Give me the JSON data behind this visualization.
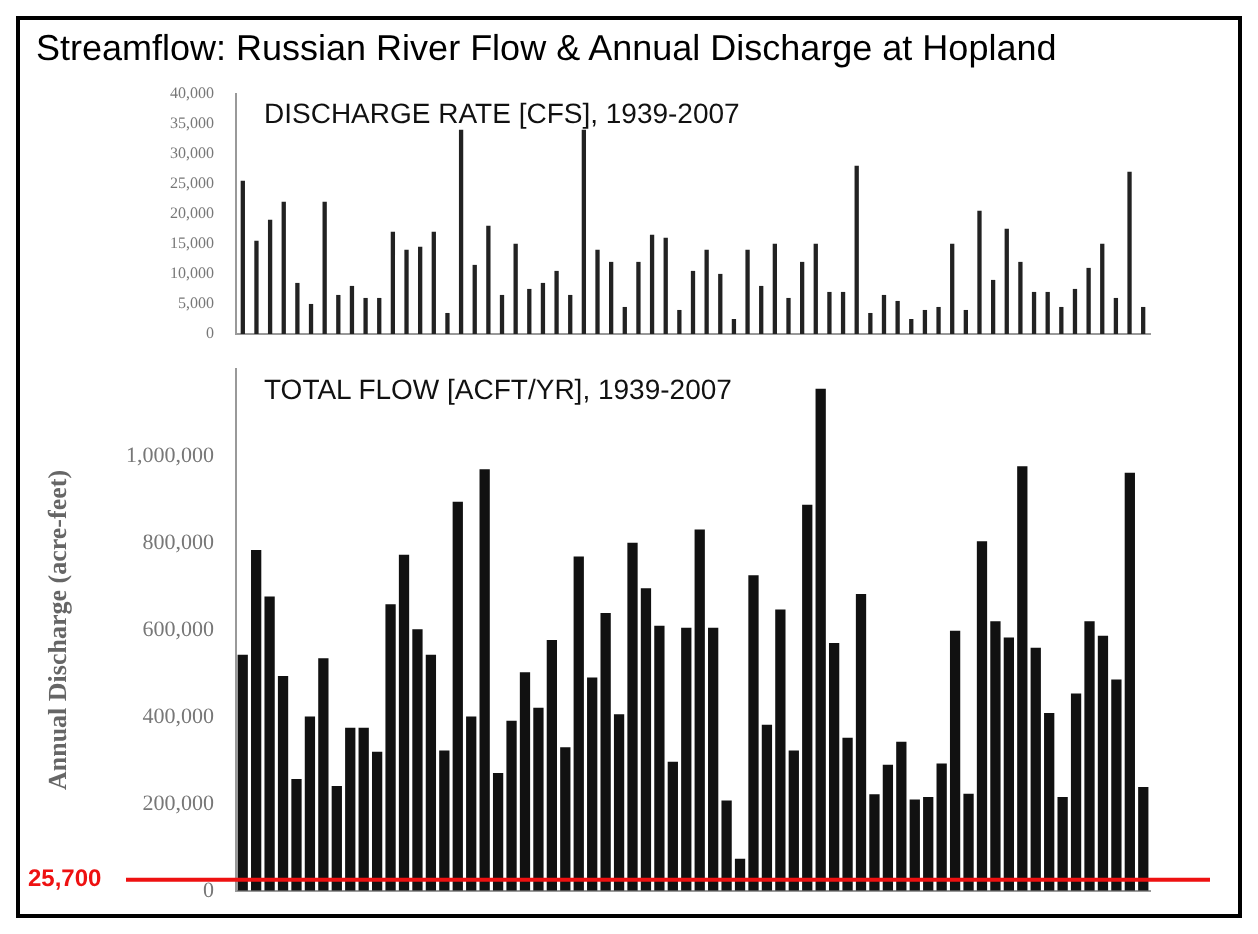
{
  "chart_data": [
    {
      "type": "bar",
      "title": "Streamflow: Russian River Flow & Annual Discharge at Hopland",
      "subtitle": "DISCHARGE RATE [CFS], 1939-2007",
      "color": "#222222",
      "tick_labels": "y",
      "categories": [
        null,
        null,
        null,
        null,
        null,
        null,
        null,
        null,
        null,
        null,
        null,
        null,
        null,
        null,
        null,
        null,
        null,
        null,
        null,
        null,
        null,
        null,
        null,
        null,
        null,
        null,
        null,
        null,
        null,
        null,
        null,
        null,
        null,
        null,
        null,
        null,
        null,
        null,
        null,
        null,
        null,
        null,
        null,
        null,
        null,
        null,
        null,
        null,
        null,
        null,
        null,
        null,
        null,
        null,
        null,
        null,
        null,
        null,
        null,
        null,
        null,
        null,
        null,
        null,
        null,
        null,
        null
      ],
      "values": [
        25500,
        15500,
        19000,
        22000,
        8500,
        5000,
        22000,
        6500,
        8000,
        6000,
        6000,
        17000,
        14000,
        14500,
        17000,
        3500,
        34000,
        11500,
        18000,
        6500,
        15000,
        7500,
        8500,
        10500,
        6500,
        34000,
        14000,
        12000,
        4500,
        12000,
        16500,
        16000,
        4000,
        10500,
        14000,
        10000,
        2500,
        14000,
        8000,
        15000,
        6000,
        12000,
        15000,
        7000,
        7000,
        28000,
        3500,
        6500,
        5500,
        2500,
        4000,
        4500,
        15000,
        4000,
        20500,
        9000,
        17500,
        12000,
        7000,
        7000,
        4500,
        7500,
        11000,
        15000,
        6000,
        27000,
        4500
      ],
      "ylim": [
        0,
        40000
      ],
      "yticks": [
        {
          "value": 0,
          "label": "0"
        },
        {
          "value": 5000,
          "label": "5,000"
        },
        {
          "value": 10000,
          "label": "10,000"
        },
        {
          "value": 15000,
          "label": "15,000"
        },
        {
          "value": 20000,
          "label": "20,000"
        },
        {
          "value": 25000,
          "label": "25,000"
        },
        {
          "value": 30000,
          "label": "30,000"
        },
        {
          "value": 35000,
          "label": "35,000"
        },
        {
          "value": 40000,
          "label": "40,000"
        }
      ]
    },
    {
      "type": "bar",
      "subtitle": "TOTAL FLOW [ACFT/YR], 1939-2007",
      "ylabel": "Annual Discharge (acre-feet)",
      "color": "#111111",
      "tick_labels": "y",
      "categories": [
        null,
        null,
        null,
        null,
        null,
        null,
        null,
        null,
        null,
        null,
        null,
        null,
        null,
        null,
        null,
        null,
        null,
        null,
        null,
        null,
        null,
        null,
        null,
        null,
        null,
        null,
        null,
        null,
        null,
        null,
        null,
        null,
        null,
        null,
        null,
        null,
        null,
        null,
        null,
        null,
        null,
        null,
        null,
        null,
        null,
        null,
        null,
        null,
        null,
        null,
        null,
        null,
        null,
        null,
        null,
        null,
        null,
        null,
        null,
        null,
        null,
        null,
        null,
        null,
        null,
        null,
        null,
        null
      ],
      "values": [
        543000,
        784000,
        677000,
        494000,
        257000,
        401000,
        535000,
        241000,
        375000,
        375000,
        320000,
        659000,
        773000,
        602000,
        543000,
        323000,
        895000,
        401000,
        970000,
        271000,
        391000,
        503000,
        421000,
        577000,
        330000,
        769000,
        491000,
        639000,
        406000,
        801000,
        696000,
        610000,
        297000,
        605000,
        831000,
        605000,
        208000,
        74000,
        726000,
        382000,
        647000,
        323000,
        888000,
        1155000,
        570000,
        352000,
        683000,
        222000,
        290000,
        343000,
        210000,
        216000,
        293000,
        598000,
        223000,
        804000,
        620000,
        583000,
        977000,
        559000,
        409000,
        216000,
        454000,
        620000,
        587000,
        486000,
        962000,
        239000
      ],
      "ylim": [
        0,
        1200000
      ],
      "yticks": [
        {
          "value": 0,
          "label": "0"
        },
        {
          "value": 200000,
          "label": "200,000"
        },
        {
          "value": 400000,
          "label": "400,000"
        },
        {
          "value": 600000,
          "label": "600,000"
        },
        {
          "value": 800000,
          "label": "800,000"
        },
        {
          "value": 1000000,
          "label": "1,000,000"
        }
      ],
      "ref_lines": [
        {
          "axis": "y",
          "value": 25700,
          "label": "25,700",
          "color": "#ee1111"
        }
      ]
    }
  ]
}
